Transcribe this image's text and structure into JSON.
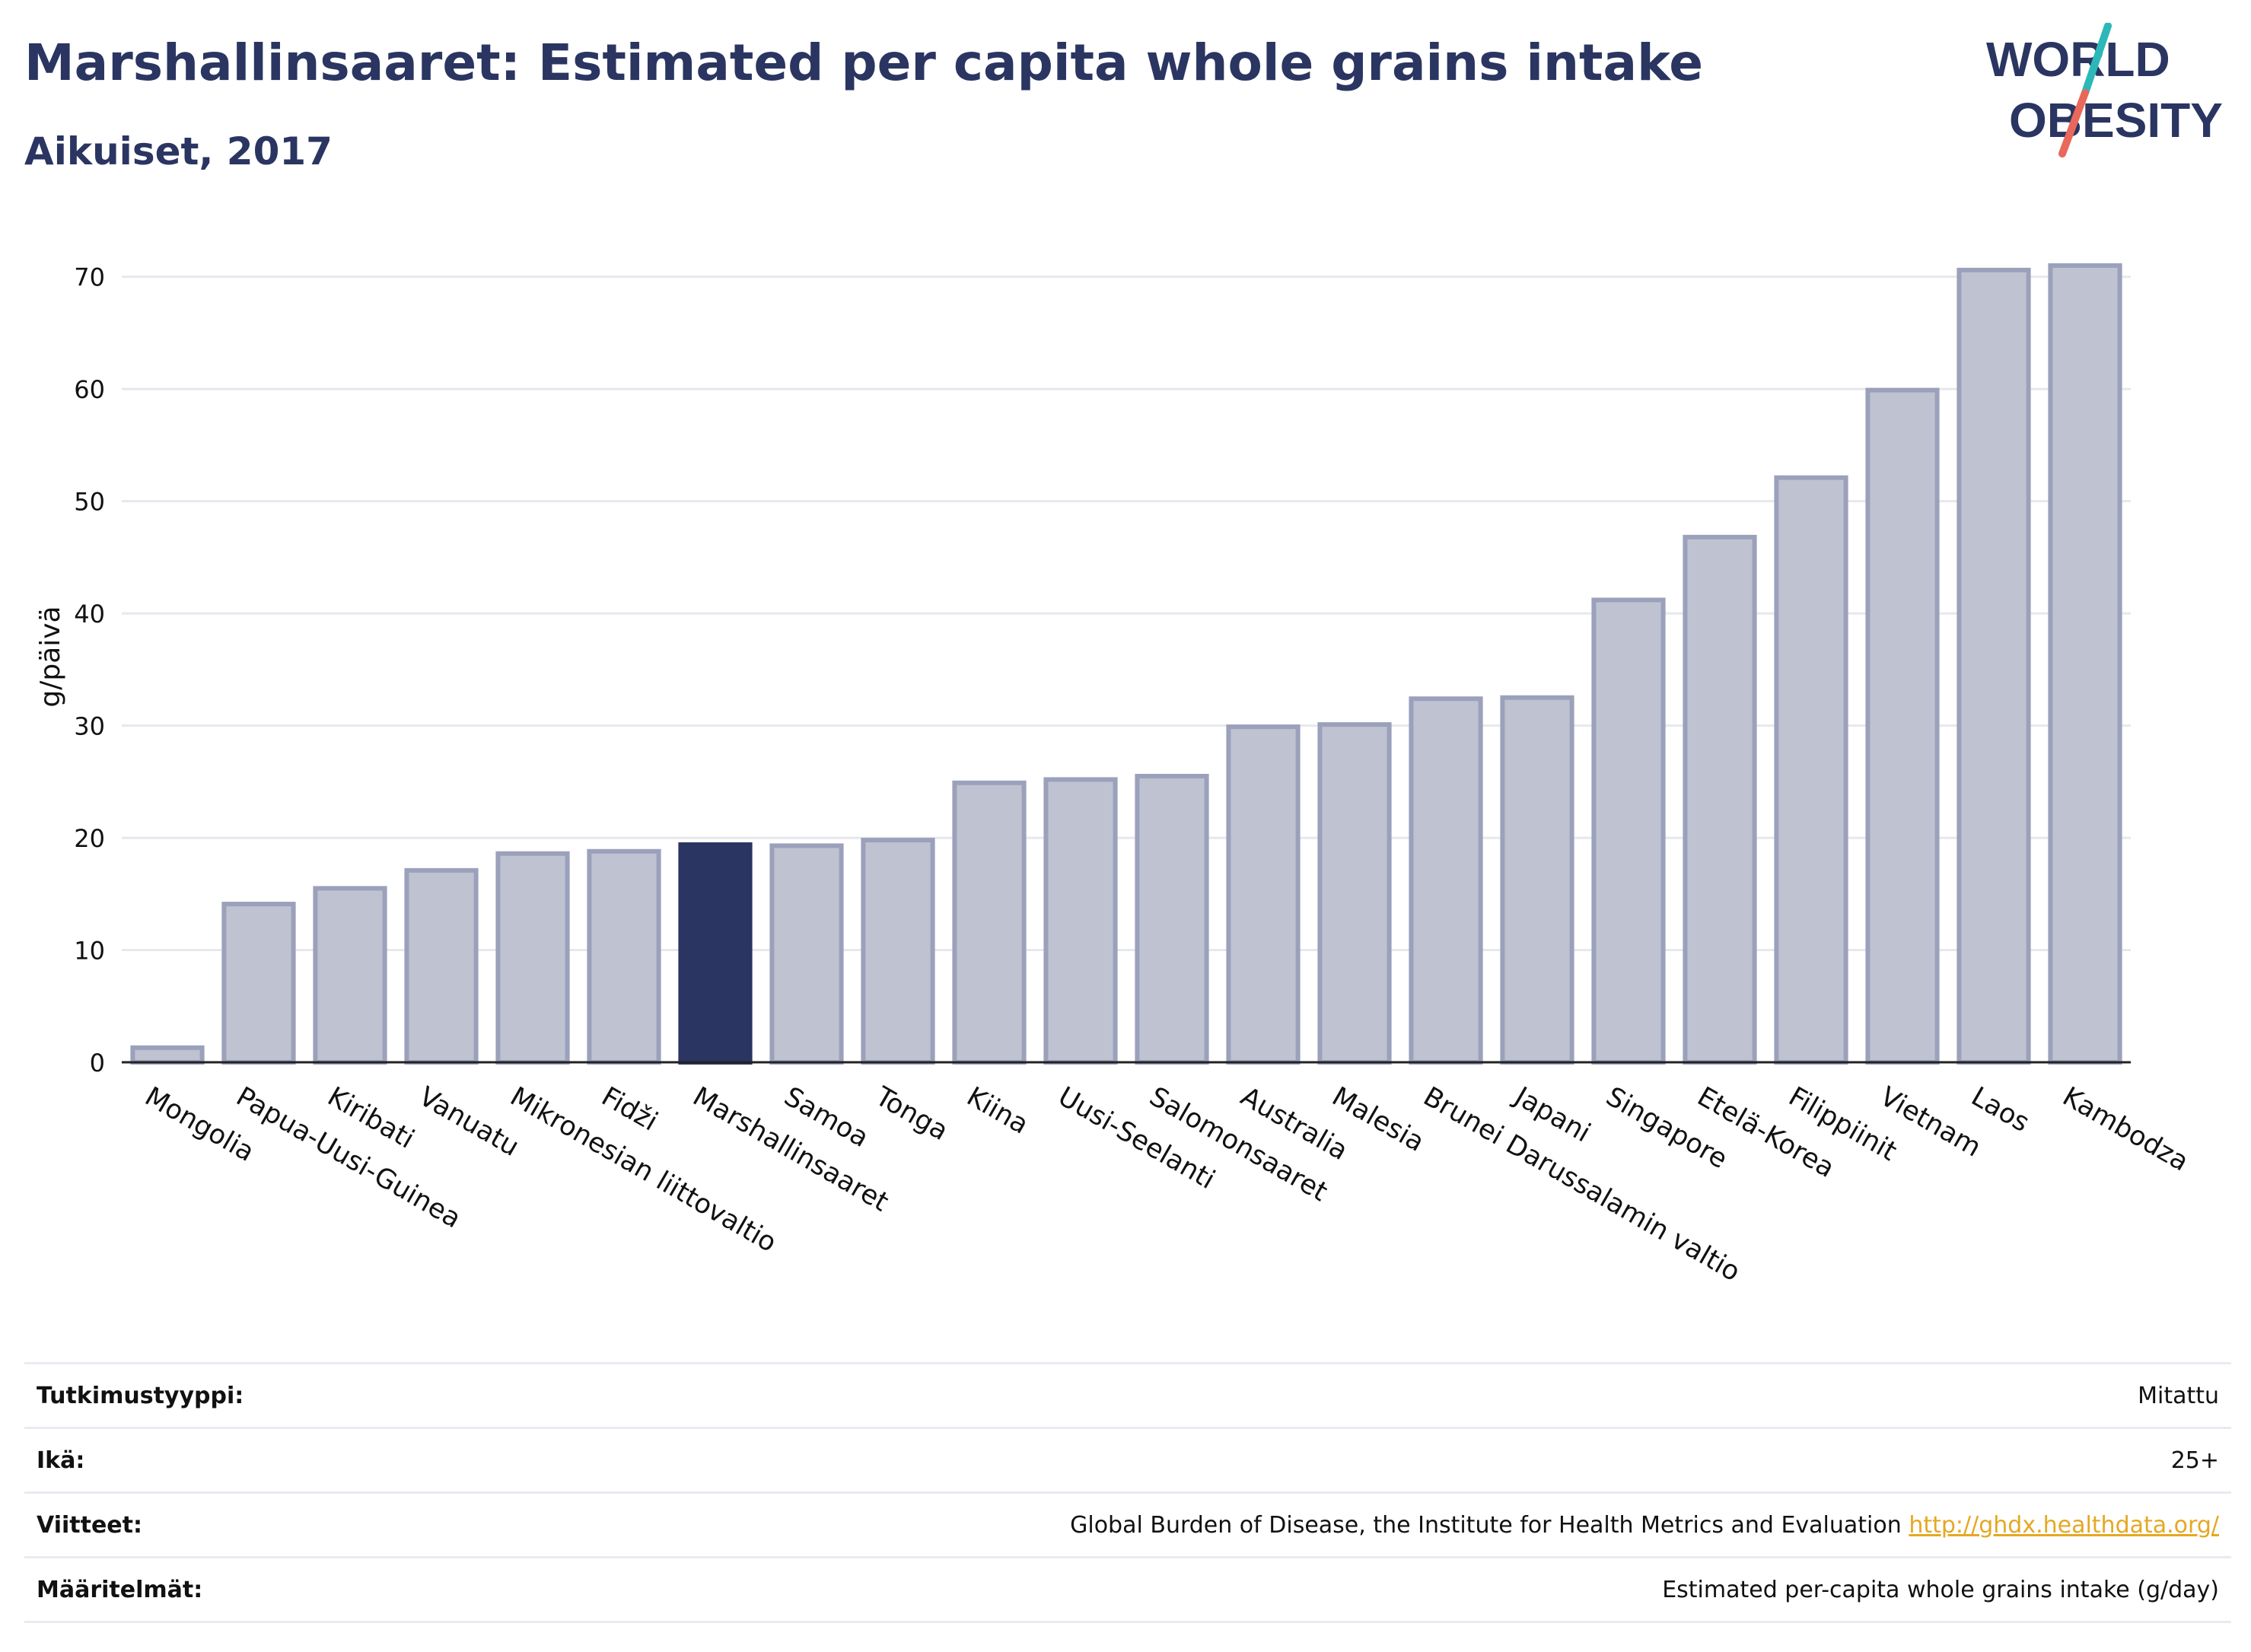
{
  "header": {
    "title": "Marshallinsaaret: Estimated per capita whole grains intake",
    "subtitle": "Aikuiset, 2017"
  },
  "logo": {
    "line1": "WORLD",
    "line2": "OBESITY",
    "name": "world-obesity-logo"
  },
  "colors": {
    "highlight": "#2a3561",
    "bar_fill": "#bfc2d0",
    "bar_stroke": "#9ba1bb",
    "text": "#2a3561",
    "link": "#e5a823",
    "logo_teal": "#2cb8b8",
    "logo_coral": "#e8685a"
  },
  "chart_data": {
    "type": "bar",
    "ylabel": "g/päivä",
    "xlabel": "",
    "ylim": [
      0,
      75
    ],
    "yticks": [
      0,
      10,
      20,
      30,
      40,
      50,
      60,
      70
    ],
    "grid": true,
    "highlight": "Marshallinsaaret",
    "categories": [
      "Mongolia",
      "Papua-Uusi-Guinea",
      "Kiribati",
      "Vanuatu",
      "Mikronesian liittovaltio",
      "Fidži",
      "Marshallinsaaret",
      "Samoa",
      "Tonga",
      "Kiina",
      "Uusi-Seelanti",
      "Salomonsaaret",
      "Australia",
      "Malesia",
      "Brunei Darussalamin valtio",
      "Japani",
      "Singapore",
      "Etelä-Korea",
      "Filippiinit",
      "Vietnam",
      "Laos",
      "Kambodza"
    ],
    "values": [
      1.3,
      14.1,
      15.5,
      17.1,
      18.6,
      18.8,
      19.4,
      19.3,
      19.8,
      24.9,
      25.2,
      25.5,
      29.9,
      30.1,
      32.4,
      32.5,
      41.2,
      46.8,
      52.1,
      59.9,
      70.6,
      71.0
    ]
  },
  "metadata": [
    {
      "key": "Tutkimustyyppi:",
      "value": "Mitattu"
    },
    {
      "key": "Ikä:",
      "value": "25+"
    },
    {
      "key": "Viitteet:",
      "value": "Global Burden of Disease, the Institute for Health Metrics and Evaluation",
      "link": "http://ghdx.healthdata.org/"
    },
    {
      "key": "Määritelmät:",
      "value": "Estimated per-capita whole grains intake (g/day)"
    }
  ]
}
